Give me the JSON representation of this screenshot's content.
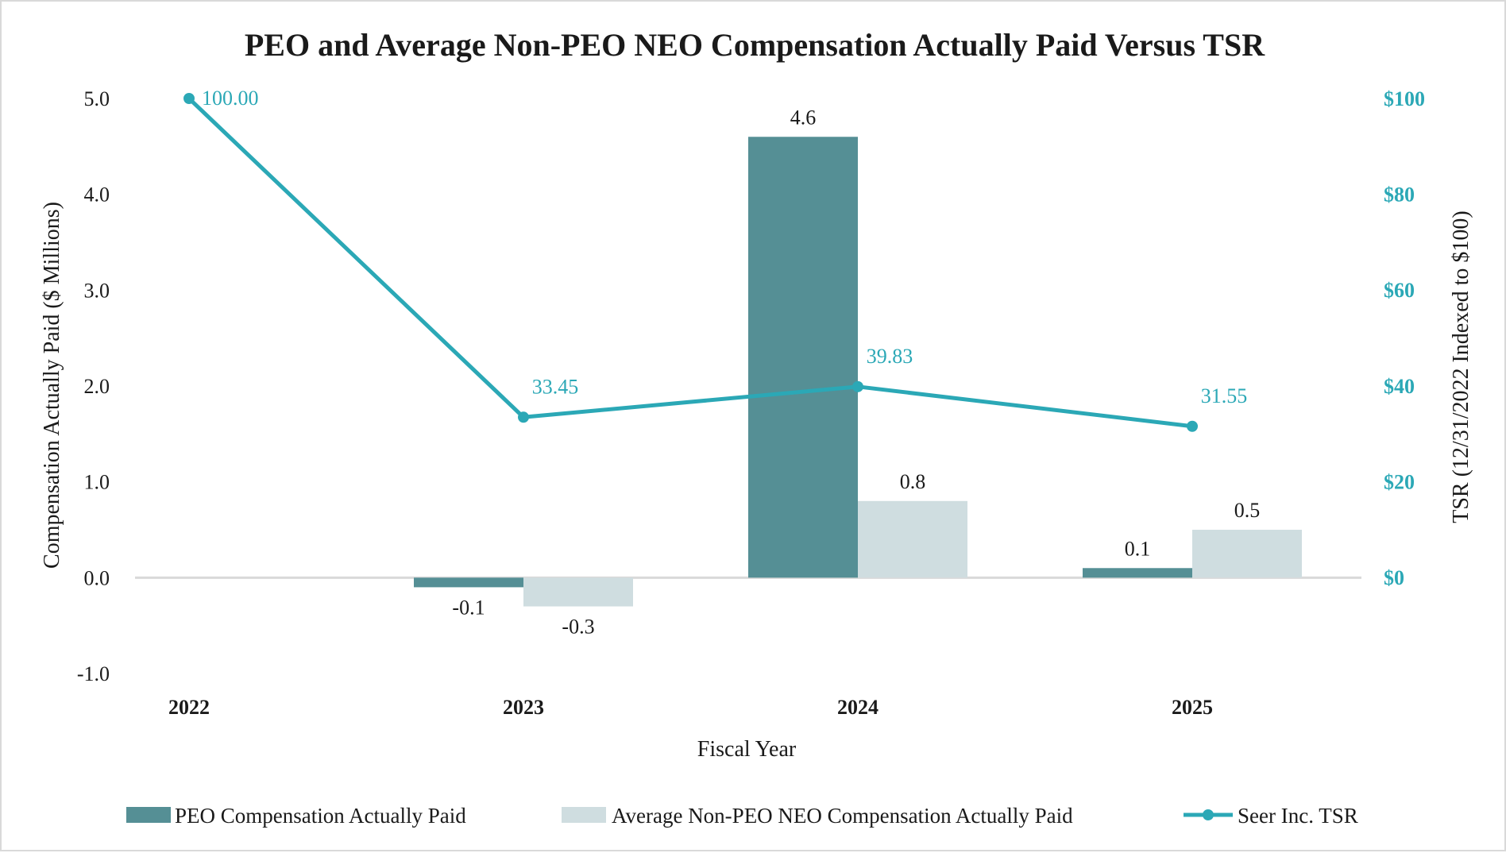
{
  "chart_data": {
    "type": "bar",
    "title": "PEO and Average Non-PEO NEO Compensation Actually Paid Versus TSR",
    "xlabel": "Fiscal Year",
    "ylabel": "Compensation Actually Paid ($ Millions)",
    "y2label": "TSR (12/31/2022 Indexed to $100)",
    "categories": [
      "2022",
      "2023",
      "2024",
      "2025"
    ],
    "ylim": [
      -1.0,
      5.0
    ],
    "yticks": [
      "5.0",
      "4.0",
      "3.0",
      "2.0",
      "1.0",
      "0.0",
      "-1.0"
    ],
    "y2lim": [
      0,
      100
    ],
    "y2ticks": [
      "$100",
      "$80",
      "$60",
      "$40",
      "$20",
      "$0"
    ],
    "series": [
      {
        "name": "PEO Compensation Actually Paid",
        "type": "bar",
        "color": "#558f95",
        "values": [
          null,
          -0.1,
          4.6,
          0.1
        ],
        "labels": [
          "",
          "-0.1",
          "4.6",
          "0.1"
        ]
      },
      {
        "name": "Average Non-PEO NEO Compensation Actually Paid",
        "type": "bar",
        "color": "#cfdde0",
        "values": [
          null,
          -0.3,
          0.8,
          0.5
        ],
        "labels": [
          "",
          "-0.3",
          "0.8",
          "0.5"
        ]
      },
      {
        "name": "Seer Inc. TSR",
        "type": "line",
        "axis": "secondary",
        "color": "#2ba8b6",
        "values": [
          100.0,
          33.45,
          39.83,
          31.55
        ],
        "labels": [
          "100.00",
          "33.45",
          "39.83",
          "31.55"
        ]
      }
    ],
    "legend_position": "bottom",
    "grid": false
  }
}
